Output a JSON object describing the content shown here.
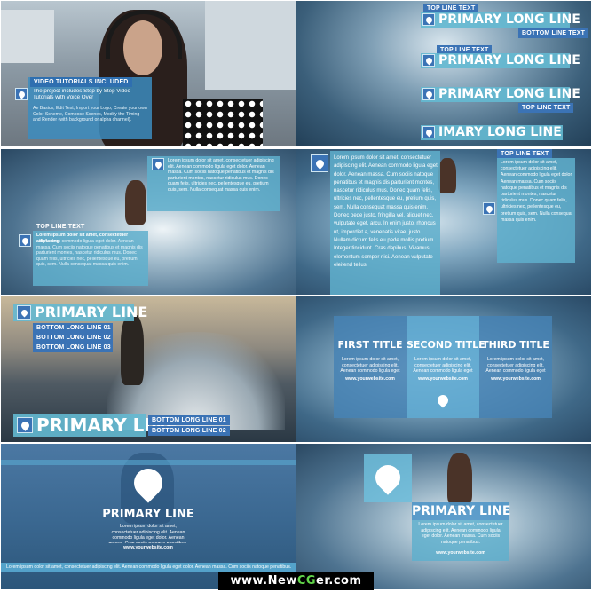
{
  "panel1": {
    "header": "VIDEO TUTORIALS INCLUDED",
    "lines": [
      "The project includes Step by Step Video",
      "Tutorials with Voice Over"
    ],
    "body": "Ae Basics, Edit Text, Import your Logo, Create your own Color Scheme, Compose Scenes, Modify the Timing and Render (with background or alpha channel)."
  },
  "panel2": {
    "top_line_1": "TOP LINE TEXT",
    "primary_1": "PRIMARY LONG LINE",
    "bottom_1": "BOTTOM LINE TEXT",
    "top_line_2": "TOP LINE TEXT",
    "primary_2": "PRIMARY LONG LINE",
    "primary_3": "PRIMARY LONG LINE",
    "bottom_3": "TOP LINE TEXT",
    "primary_4": "IMARY LONG LINE"
  },
  "panel3": {
    "box1_text": "Lorem ipsum dolor sit amet, consectetuer adipiscing elit. Aenean commodo ligula eget dolor. Aenean massa. Cum sociis natoque penatibus et magnis dis parturient montes, nascetur ridiculus mus. Donec quam felis, ultricies nec, pellentesque eu, pretium quis, sem. Nulla consequat massa quis enim.",
    "box2_header": "TOP LINE TEXT",
    "box2_lead": "Lorem ipsum dolor sit amet, consectetuer adipiscing",
    "box2_text": "elit. Aenean commodo ligula eget dolor. Aenean massa. Cum sociis natoque penatibus et magnis dis parturient montes, nascetur ridiculus mus. Donec quam felis, ultricies nec, pellentesque eu, pretium quis, sem. Nulla consequat massa quis enim."
  },
  "panel4": {
    "col1_text": "Lorem ipsum dolor sit amet, consectetuer adipiscing elit. Aenean commodo ligula eget dolor. Aenean massa. Cum sociis natoque penatibus et magnis dis parturient montes, nascetur ridiculus mus. Donec quam felis, ultricies nec, pellentesque eu, pretium quis, sem. Nulla consequat massa quis enim. Donec pede justo, fringilla vel, aliquet nec, vulputate eget, arcu. In enim justo, rhoncus ut, imperdiet a, venenatis vitae, justo. Nullam dictum felis eu pede mollis pretium. Integer tincidunt. Cras dapibus. Vivamus elementum semper nisi. Aenean vulputate eleifend tellus.",
    "col2_header": "TOP LINE TEXT",
    "col2_text": "Lorem ipsum dolor sit amet, consectetuer adipiscing elit. Aenean commodo ligula eget dolor. Aenean massa. Cum sociis natoque penatibus et magnis dis parturient montes, nascetur ridiculus mus. Donec quam felis, ultricies nec, pellentesque eu, pretium quis, sem. Nulla consequat massa quis enim."
  },
  "panel5": {
    "primary_top": "PRIMARY LINE",
    "bottom_1": "BOTTOM LONG LINE 01",
    "bottom_2": "BOTTOM LONG LINE 02",
    "bottom_3": "BOTTOM LONG LINE 03",
    "primary_bottom": "PRIMARY LINE",
    "bottom_b1": "BOTTOM LONG LINE 01",
    "bottom_b2": "BOTTOM LONG LINE 02"
  },
  "panel6": {
    "titles": [
      "FIRST TITLE",
      "SECOND TITLE",
      "THIRD TITLE"
    ],
    "text": "Lorem ipsum dolor sit amet, consectetuer adipiscing elit. Aenean commodo ligula eget dolor. Aenean massa. Cum sociis natoque penatibus.",
    "website": "www.yourwebsite.com"
  },
  "panel7": {
    "title": "PRIMARY LINE",
    "text": "Lorem ipsum dolor sit amet, consectetuer adipiscing elit. Aenean commodo ligula eget dolor. Aenean massa. Cum sociis natoque penatibus.",
    "website": "www.yourwebsite.com",
    "ticker": "Lorem ipsum dolor sit amet, consectetuer adipiscing elit. Aenean commodo ligula eget dolor. Aenean massa. Cum sociis natoque penatibus."
  },
  "panel8": {
    "title": "PRIMARY LINE",
    "text": "Lorem ipsum dolor sit amet, consectetuer adipiscing elit. Aenean commodo ligula eget dolor. Aenean massa. Cum sociis natoque penatibus.",
    "website": "www.yourwebsite.com"
  },
  "footer": {
    "prefix": "www.New",
    "accent": "CG",
    "suffix": "er.com"
  }
}
